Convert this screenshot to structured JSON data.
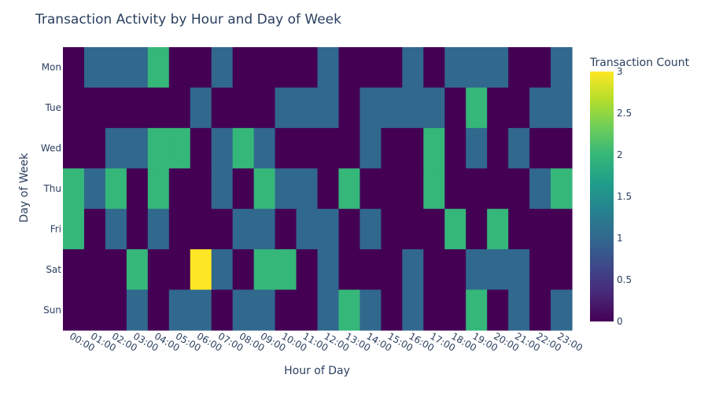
{
  "chart_data": {
    "type": "heatmap",
    "title": "Transaction Activity by Hour and Day of Week",
    "xlabel": "Hour of Day",
    "ylabel": "Day of Week",
    "colorbar_title": "Transaction Count",
    "colorscale": "Viridis",
    "zlim": [
      0,
      3
    ],
    "colorbar_ticks": [
      "0",
      "0.5",
      "1",
      "1.5",
      "2",
      "2.5",
      "3"
    ],
    "colorbar_tick_values": [
      0,
      0.5,
      1,
      1.5,
      2,
      2.5,
      3
    ],
    "x": [
      "00:00",
      "01:00",
      "02:00",
      "03:00",
      "04:00",
      "05:00",
      "06:00",
      "07:00",
      "08:00",
      "09:00",
      "10:00",
      "11:00",
      "12:00",
      "13:00",
      "14:00",
      "15:00",
      "16:00",
      "17:00",
      "18:00",
      "19:00",
      "20:00",
      "21:00",
      "22:00",
      "23:00"
    ],
    "y": [
      "Mon",
      "Tue",
      "Wed",
      "Thu",
      "Fri",
      "Sat",
      "Sun"
    ],
    "z": [
      [
        0,
        1,
        1,
        1,
        2,
        0,
        0,
        1,
        0,
        0,
        0,
        0,
        1,
        0,
        0,
        0,
        1,
        0,
        1,
        1,
        1,
        0,
        0,
        1
      ],
      [
        0,
        0,
        0,
        0,
        0,
        0,
        1,
        0,
        0,
        0,
        1,
        1,
        1,
        0,
        1,
        1,
        1,
        1,
        0,
        2,
        0,
        0,
        1,
        1
      ],
      [
        0,
        0,
        1,
        1,
        2,
        2,
        0,
        1,
        2,
        1,
        0,
        0,
        0,
        0,
        1,
        0,
        0,
        2,
        0,
        1,
        0,
        1,
        0,
        0
      ],
      [
        2,
        1,
        2,
        0,
        2,
        0,
        0,
        1,
        0,
        2,
        1,
        1,
        0,
        2,
        0,
        0,
        0,
        2,
        0,
        0,
        0,
        0,
        1,
        2
      ],
      [
        2,
        0,
        1,
        0,
        1,
        0,
        0,
        0,
        1,
        1,
        0,
        1,
        1,
        0,
        1,
        0,
        0,
        0,
        2,
        0,
        2,
        0,
        0,
        0
      ],
      [
        0,
        0,
        0,
        2,
        0,
        0,
        3,
        1,
        0,
        2,
        2,
        0,
        1,
        0,
        0,
        0,
        1,
        0,
        0,
        1,
        1,
        1,
        0,
        0
      ],
      [
        0,
        0,
        0,
        1,
        0,
        1,
        1,
        0,
        1,
        1,
        0,
        0,
        1,
        2,
        1,
        0,
        1,
        0,
        0,
        2,
        0,
        1,
        0,
        1
      ]
    ]
  }
}
